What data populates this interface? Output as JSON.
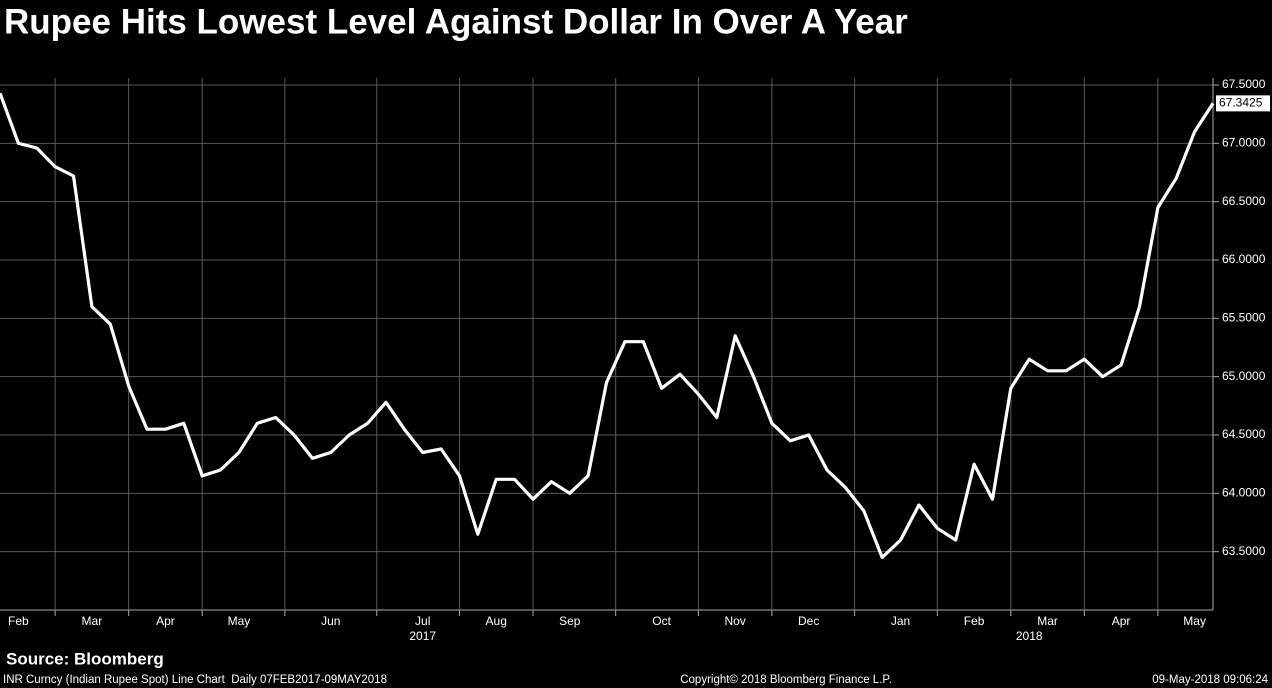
{
  "chart_data": {
    "type": "line",
    "title": "Rupee Hits Lowest Level Against Dollar In Over A Year",
    "categories": [
      null,
      "Feb",
      null,
      null,
      null,
      "Mar",
      null,
      null,
      null,
      "Apr",
      null,
      null,
      null,
      "May",
      null,
      null,
      null,
      null,
      "Jun",
      null,
      null,
      null,
      null,
      "Jul",
      null,
      null,
      null,
      "Aug",
      null,
      null,
      null,
      "Sep",
      null,
      null,
      null,
      null,
      "Oct",
      null,
      null,
      null,
      "Nov",
      null,
      null,
      null,
      "Dec",
      null,
      null,
      null,
      null,
      "Jan",
      null,
      null,
      null,
      "Feb",
      null,
      null,
      null,
      "Mar",
      null,
      null,
      null,
      "Apr",
      null,
      null,
      null,
      "May",
      null
    ],
    "year_categories": [
      null,
      null,
      null,
      null,
      null,
      null,
      null,
      null,
      null,
      null,
      null,
      null,
      null,
      null,
      null,
      null,
      null,
      null,
      null,
      null,
      null,
      null,
      null,
      "2017",
      null,
      null,
      null,
      null,
      null,
      null,
      null,
      null,
      null,
      null,
      null,
      null,
      null,
      null,
      null,
      null,
      null,
      null,
      null,
      null,
      null,
      null,
      null,
      null,
      null,
      null,
      null,
      null,
      null,
      null,
      null,
      null,
      "2018",
      null,
      null,
      null,
      null,
      null,
      null,
      null,
      null,
      null,
      null
    ],
    "series": [
      {
        "name": "INR Curncy",
        "color": "#ffffff",
        "values": [
          67.43,
          67.0,
          66.96,
          66.8,
          66.72,
          65.6,
          65.45,
          64.92,
          64.55,
          64.55,
          64.6,
          64.15,
          64.2,
          64.35,
          64.6,
          64.65,
          64.5,
          64.3,
          64.35,
          64.5,
          64.6,
          64.78,
          64.55,
          64.35,
          64.38,
          64.15,
          63.65,
          64.12,
          64.12,
          63.95,
          64.1,
          64.0,
          64.15,
          64.95,
          65.3,
          65.3,
          64.9,
          65.02,
          64.85,
          64.65,
          65.35,
          65.0,
          64.6,
          64.45,
          64.5,
          64.2,
          64.05,
          63.85,
          63.45,
          63.6,
          63.9,
          63.7,
          63.6,
          64.25,
          63.95,
          64.9,
          65.15,
          65.05,
          65.05,
          65.15,
          65.0,
          65.1,
          65.6,
          66.45,
          66.7,
          67.1,
          67.3425
        ]
      }
    ],
    "last_value_label": "67.3425",
    "ylim": [
      63.0,
      67.56
    ],
    "yticks": [
      {
        "value": 63.5,
        "label": "63.5000"
      },
      {
        "value": 64.0,
        "label": "64.0000"
      },
      {
        "value": 64.5,
        "label": "64.5000"
      },
      {
        "value": 65.0,
        "label": "65.0000"
      },
      {
        "value": 65.5,
        "label": "65.5000"
      },
      {
        "value": 66.0,
        "label": "66.0000"
      },
      {
        "value": 66.5,
        "label": "66.5000"
      },
      {
        "value": 67.0,
        "label": "67.0000"
      },
      {
        "value": 67.5,
        "label": "67.5000"
      }
    ],
    "grid": true,
    "source": "Source: Bloomberg",
    "footer_left": "INR Curncy (Indian Rupee Spot) Line Chart  Daily 07FEB2017-09MAY2018",
    "footer_center": "Copyright© 2018 Bloomberg Finance L.P.",
    "footer_right": "09-May-2018 09:06:24"
  }
}
